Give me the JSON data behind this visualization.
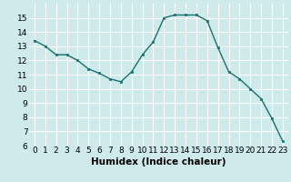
{
  "x": [
    0,
    1,
    2,
    3,
    4,
    5,
    6,
    7,
    8,
    9,
    10,
    11,
    12,
    13,
    14,
    15,
    16,
    17,
    18,
    19,
    20,
    21,
    22,
    23
  ],
  "y": [
    13.4,
    13.0,
    12.4,
    12.4,
    12.0,
    11.4,
    11.1,
    10.7,
    10.5,
    11.2,
    12.4,
    13.3,
    15.0,
    15.2,
    15.2,
    15.2,
    14.8,
    12.9,
    11.2,
    10.7,
    10.0,
    9.3,
    7.9,
    6.3
  ],
  "xlabel": "Humidex (Indice chaleur)",
  "xlim": [
    -0.5,
    23.5
  ],
  "ylim": [
    6,
    16
  ],
  "yticks": [
    6,
    7,
    8,
    9,
    10,
    11,
    12,
    13,
    14,
    15
  ],
  "xticks": [
    0,
    1,
    2,
    3,
    4,
    5,
    6,
    7,
    8,
    9,
    10,
    11,
    12,
    13,
    14,
    15,
    16,
    17,
    18,
    19,
    20,
    21,
    22,
    23
  ],
  "line_color": "#1a7070",
  "marker_color": "#1a7070",
  "bg_color": "#ceeaea",
  "grid_color": "#ffffff",
  "xlabel_fontsize": 7.5,
  "tick_fontsize": 6.5
}
